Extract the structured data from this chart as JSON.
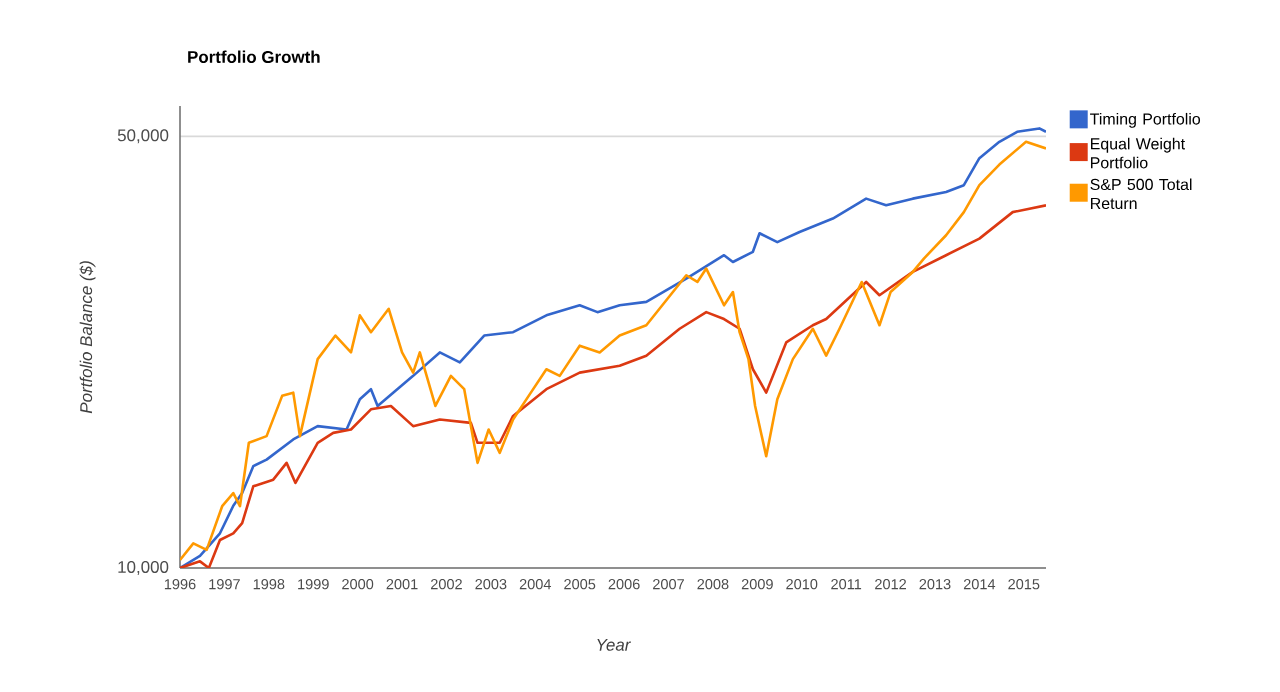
{
  "chart_data": {
    "type": "line",
    "title": "Portfolio Growth",
    "xlabel": "Year",
    "ylabel": "Portfolio Balance ($)",
    "xlim": [
      1996,
      2015.5
    ],
    "xticks": [
      1996,
      1997,
      1998,
      1999,
      2000,
      2001,
      2002,
      2003,
      2004,
      2005,
      2006,
      2007,
      2008,
      2009,
      2010,
      2011,
      2012,
      2013,
      2014,
      2015
    ],
    "ylim": [
      10000,
      56000
    ],
    "yticks": [
      {
        "value": 10000,
        "label": "10,000"
      },
      {
        "value": 50000,
        "label": "50,000"
      }
    ],
    "log": "y",
    "grid": "y",
    "legend": "right",
    "marker": "none",
    "line_style": "solid",
    "series": [
      {
        "name": "Timing Portfolio",
        "color": "#3366cc",
        "x": [
          1996.0,
          1996.45,
          1996.9,
          1997.2,
          1997.4,
          1997.65,
          1997.95,
          1998.55,
          1999.1,
          1999.75,
          2000.05,
          2000.3,
          2000.45,
          2000.8,
          2001.25,
          2001.85,
          2002.3,
          2002.85,
          2003.5,
          2004.25,
          2005.0,
          2005.4,
          2005.9,
          2006.5,
          2007.4,
          2008.25,
          2008.45,
          2008.9,
          2009.05,
          2009.45,
          2009.95,
          2010.7,
          2011.45,
          2011.9,
          2012.5,
          2013.25,
          2013.65,
          2014.0,
          2014.45,
          2014.85,
          2015.35,
          2015.5
        ],
        "values": [
          10000,
          10460,
          11380,
          12610,
          13220,
          14620,
          14980,
          16150,
          16970,
          16760,
          18760,
          19480,
          18300,
          19230,
          20470,
          22340,
          21520,
          23790,
          24090,
          25650,
          26630,
          25960,
          26630,
          26970,
          29420,
          32100,
          31300,
          32510,
          34840,
          33700,
          35000,
          36800,
          39640,
          38670,
          39640,
          40630,
          41680,
          46090,
          49000,
          50860,
          51500,
          50860
        ]
      },
      {
        "name": "Equal Weight Portfolio",
        "color": "#dc3912",
        "x": [
          1996.0,
          1996.45,
          1996.65,
          1996.9,
          1997.2,
          1997.4,
          1997.65,
          1998.1,
          1998.4,
          1998.6,
          1999.1,
          1999.45,
          1999.85,
          2000.3,
          2000.75,
          2001.25,
          2001.85,
          2002.55,
          2002.7,
          2003.2,
          2003.5,
          2004.25,
          2005.0,
          2005.9,
          2006.5,
          2007.25,
          2007.85,
          2008.25,
          2008.6,
          2008.9,
          2009.2,
          2009.65,
          2010.25,
          2010.55,
          2011.45,
          2011.75,
          2012.5,
          2013.25,
          2014.0,
          2014.75,
          2015.5
        ],
        "values": [
          10000,
          10250,
          10000,
          11100,
          11380,
          11820,
          13560,
          13900,
          14800,
          13730,
          15950,
          16550,
          16760,
          18070,
          18300,
          16970,
          17400,
          17180,
          15950,
          15950,
          17630,
          19480,
          20720,
          21260,
          22070,
          24400,
          25960,
          25300,
          24400,
          20980,
          19230,
          23190,
          24720,
          25300,
          29050,
          27650,
          30160,
          32100,
          34150,
          37700,
          38670
        ]
      },
      {
        "name": "S&P 500 Total Return",
        "color": "#ff9900",
        "x": [
          1996.0,
          1996.3,
          1996.6,
          1996.95,
          1997.2,
          1997.35,
          1997.55,
          1997.95,
          1998.3,
          1998.55,
          1998.7,
          1999.1,
          1999.5,
          1999.85,
          2000.05,
          2000.3,
          2000.7,
          2001.0,
          2001.25,
          2001.4,
          2001.75,
          2002.1,
          2002.4,
          2002.7,
          2002.95,
          2003.2,
          2003.5,
          2003.9,
          2004.25,
          2004.55,
          2005.0,
          2005.45,
          2005.9,
          2006.5,
          2007.4,
          2007.65,
          2007.85,
          2008.25,
          2008.45,
          2008.6,
          2008.8,
          2008.95,
          2009.2,
          2009.45,
          2009.8,
          2010.25,
          2010.55,
          2010.85,
          2011.35,
          2011.75,
          2012.0,
          2012.5,
          2012.75,
          2013.25,
          2013.65,
          2014.0,
          2014.45,
          2015.05,
          2015.5
        ],
        "values": [
          10300,
          10960,
          10700,
          12590,
          13220,
          12590,
          15950,
          16350,
          19000,
          19230,
          16350,
          21790,
          23790,
          22340,
          25650,
          24090,
          26290,
          22340,
          20720,
          22340,
          18300,
          20470,
          19480,
          14800,
          16760,
          15360,
          17400,
          19230,
          20980,
          20470,
          22910,
          22340,
          23790,
          24720,
          29790,
          29050,
          30540,
          26630,
          27980,
          24090,
          21790,
          18300,
          15170,
          18760,
          21790,
          24400,
          22070,
          24400,
          29050,
          24720,
          27980,
          30160,
          31700,
          34580,
          37700,
          41680,
          45000,
          49000,
          47800
        ]
      }
    ]
  }
}
